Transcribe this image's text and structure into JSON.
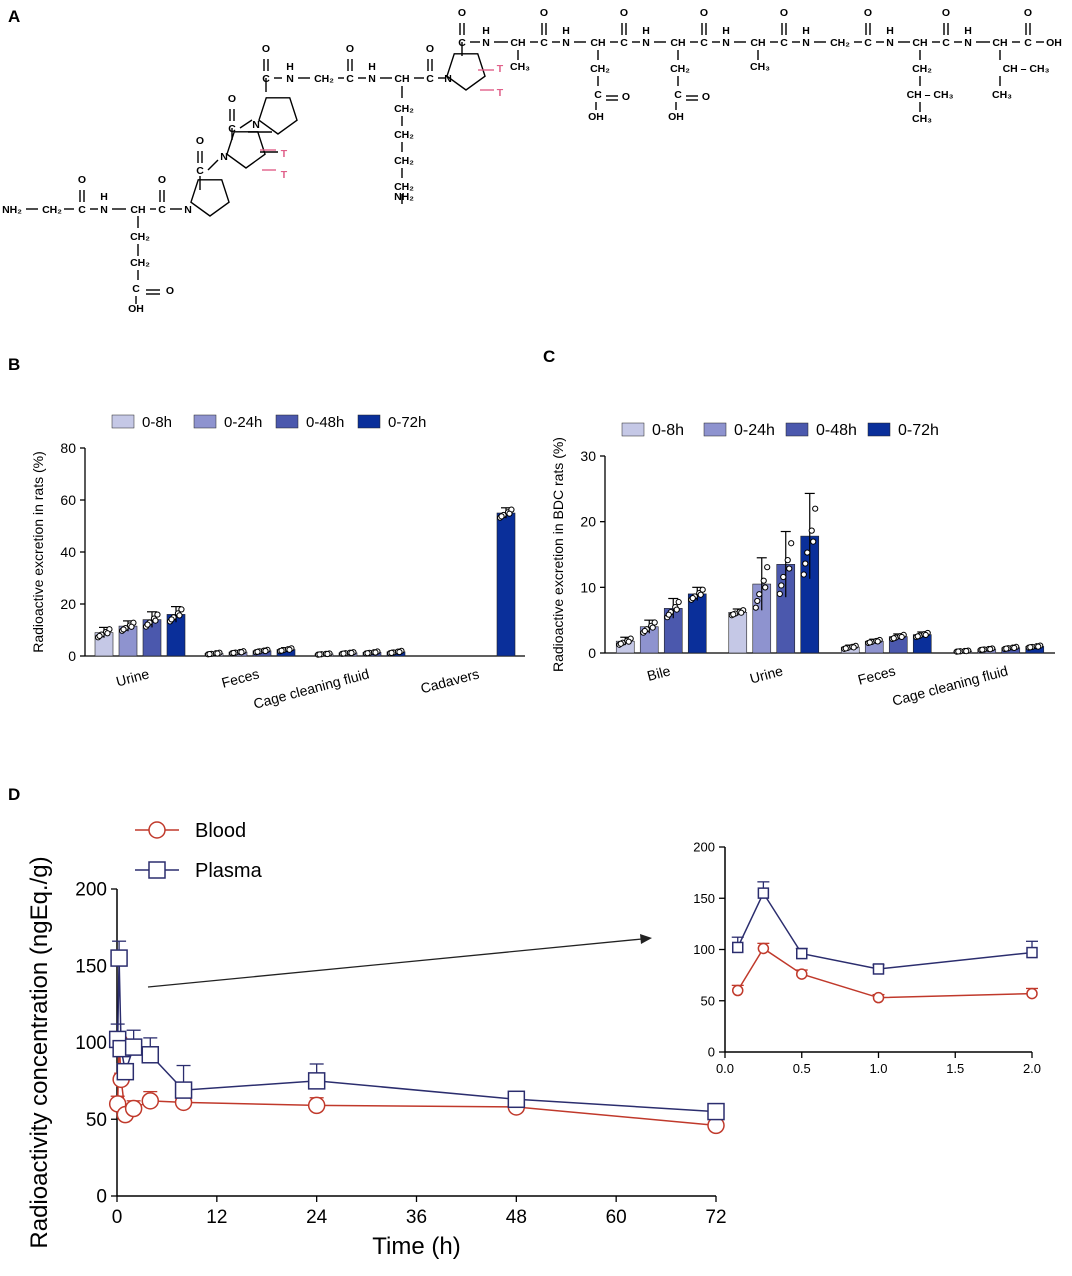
{
  "panel_labels": {
    "a": "A",
    "b": "B",
    "c": "C",
    "d": "D"
  },
  "structure": {
    "name": "tritium-labelled peptide structure",
    "n_terminus": "NH₂",
    "c_terminus": "OH",
    "tritium_label": "T",
    "atoms": {
      "N": "N",
      "H": "H",
      "C": "C",
      "O": "O",
      "OH": "OH",
      "NH2": "NH₂",
      "CH": "CH",
      "CH2": "CH₂",
      "CH3": "CH₃"
    },
    "fragments": {
      "ch2_ch3": "CH – CH₃"
    }
  },
  "chart_data": [
    {
      "id": "B",
      "type": "bar",
      "title": "",
      "ylabel": "Radioactive excretion in rats (%)",
      "xlabel": "",
      "ylim": [
        0,
        80
      ],
      "yticks": [
        0,
        20,
        40,
        60,
        80
      ],
      "legend_position": "top",
      "categories": [
        "Urine",
        "Feces",
        "Cage cleaning fluid",
        "Cadavers"
      ],
      "series": [
        {
          "name": "0-8h",
          "color": "#c5c8e6",
          "values": [
            9,
            1,
            0.8,
            null
          ],
          "errors": [
            2,
            0.4,
            0.3,
            null
          ]
        },
        {
          "name": "0-24h",
          "color": "#8e93cf",
          "values": [
            11.5,
            1.5,
            1.2,
            null
          ],
          "errors": [
            2,
            0.5,
            0.4,
            null
          ]
        },
        {
          "name": "0-48h",
          "color": "#4b58ad",
          "values": [
            14,
            2,
            1.4,
            null
          ],
          "errors": [
            3,
            0.6,
            0.5,
            null
          ]
        },
        {
          "name": "0-72h",
          "color": "#0a2f9a",
          "values": [
            16,
            2.5,
            1.6,
            55
          ],
          "errors": [
            3,
            0.7,
            0.6,
            2
          ]
        }
      ]
    },
    {
      "id": "C",
      "type": "bar",
      "title": "",
      "ylabel": "Radioactive excretion in BDC rats (%)",
      "xlabel": "",
      "ylim": [
        0,
        30
      ],
      "yticks": [
        0,
        10,
        20,
        30
      ],
      "legend_position": "top",
      "categories": [
        "Bile",
        "Urine",
        "Feces",
        "Cage cleaning fluid"
      ],
      "series": [
        {
          "name": "0-8h",
          "color": "#c5c8e6",
          "values": [
            1.8,
            6.2,
            0.9,
            0.3
          ],
          "errors": [
            0.6,
            0.5,
            0.3,
            0.1
          ]
        },
        {
          "name": "0-24h",
          "color": "#8e93cf",
          "values": [
            4,
            10.5,
            1.8,
            0.6
          ],
          "errors": [
            1,
            4,
            0.3,
            0.15
          ]
        },
        {
          "name": "0-48h",
          "color": "#4b58ad",
          "values": [
            6.8,
            13.5,
            2.5,
            0.8
          ],
          "errors": [
            1.5,
            5,
            0.4,
            0.2
          ]
        },
        {
          "name": "0-72h",
          "color": "#0a2f9a",
          "values": [
            9,
            17.8,
            2.8,
            1
          ],
          "errors": [
            1,
            6.5,
            0.4,
            0.2
          ]
        }
      ]
    },
    {
      "id": "D",
      "type": "line",
      "title": "",
      "xlabel": "Time (h)",
      "ylabel": "Radioactivity concentration (ngEq./g)",
      "xlim": [
        0,
        72
      ],
      "ylim": [
        0,
        200
      ],
      "xticks": [
        0,
        12,
        24,
        36,
        48,
        60,
        72
      ],
      "yticks": [
        0,
        50,
        100,
        150,
        200
      ],
      "legend_position": "top-left",
      "series": [
        {
          "name": "Blood",
          "color": "#c0392b",
          "marker": "circle",
          "x": [
            0.083,
            0.25,
            0.5,
            1,
            2,
            4,
            8,
            24,
            48,
            72
          ],
          "y": [
            60,
            101,
            76,
            53,
            57,
            62,
            61,
            59,
            58,
            46
          ],
          "errors": [
            5,
            5,
            4,
            3,
            5,
            6,
            4,
            5,
            4,
            4
          ]
        },
        {
          "name": "Plasma",
          "color": "#2b2d6e",
          "marker": "square",
          "x": [
            0.083,
            0.25,
            0.5,
            1,
            2,
            4,
            8,
            24,
            48,
            72
          ],
          "y": [
            102,
            155,
            96,
            81,
            97,
            92,
            69,
            75,
            63,
            55
          ],
          "errors": [
            10,
            11,
            5,
            4,
            11,
            11,
            16,
            11,
            3,
            3
          ]
        }
      ]
    },
    {
      "id": "D-inset",
      "type": "line",
      "title": "",
      "xlabel": "",
      "ylabel": "",
      "xlim": [
        0,
        2
      ],
      "ylim": [
        0,
        200
      ],
      "xticks": [
        0,
        0.5,
        1,
        1.5,
        2
      ],
      "xtick_labels": [
        "0.0",
        "0.5",
        "1.0",
        "1.5",
        "2.0"
      ],
      "yticks": [
        0,
        50,
        100,
        150,
        200
      ],
      "series": [
        {
          "name": "Blood",
          "color": "#c0392b",
          "marker": "circle",
          "x": [
            0.083,
            0.25,
            0.5,
            1,
            2
          ],
          "y": [
            60,
            101,
            76,
            53,
            57
          ],
          "errors": [
            5,
            5,
            4,
            3,
            5
          ]
        },
        {
          "name": "Plasma",
          "color": "#2b2d6e",
          "marker": "square",
          "x": [
            0.083,
            0.25,
            0.5,
            1,
            2
          ],
          "y": [
            102,
            155,
            96,
            81,
            97
          ],
          "errors": [
            10,
            11,
            5,
            4,
            11
          ]
        }
      ]
    }
  ]
}
